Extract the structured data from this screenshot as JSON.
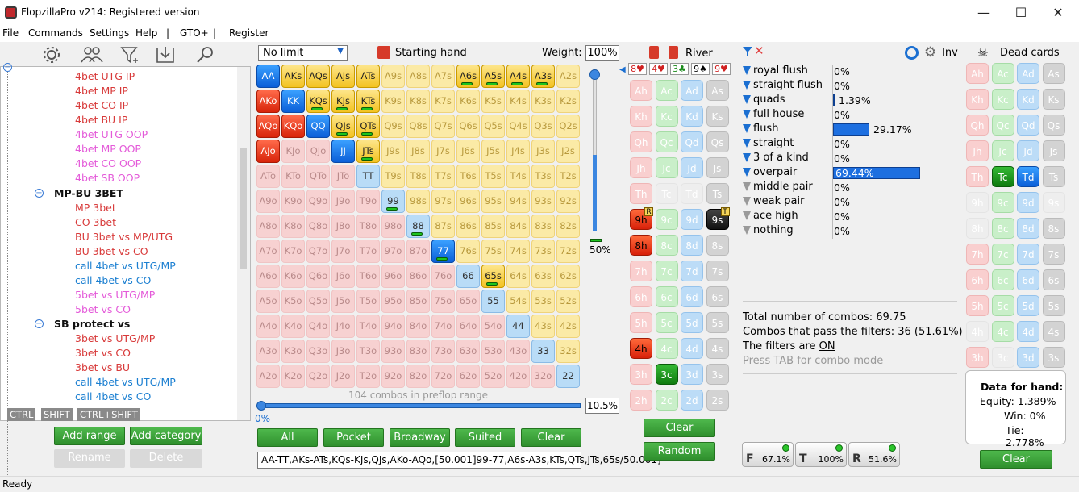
{
  "window": {
    "title": "FlopzillaPro v214: Registered version",
    "min": "—",
    "max": "☐",
    "close": "✕"
  },
  "menu": [
    "File",
    "Commands",
    "Settings",
    "Help",
    "|",
    "GTO+",
    "|",
    "Register"
  ],
  "toolbar_icons": [
    "gear-icon",
    "users-icon",
    "filter-add-icon",
    "import-icon",
    "search-icon"
  ],
  "tree": {
    "top_items": [
      {
        "label": "4bet UTG IP",
        "color": "#d83a3a"
      },
      {
        "label": "4bet MP IP",
        "color": "#d83a3a"
      },
      {
        "label": "4bet CO IP",
        "color": "#d83a3a"
      },
      {
        "label": "4bet BU IP",
        "color": "#d83a3a"
      },
      {
        "label": "4bet UTG OOP",
        "color": "#e45ad9"
      },
      {
        "label": "4bet MP OOP",
        "color": "#e45ad9"
      },
      {
        "label": "4bet CO OOP",
        "color": "#e45ad9"
      },
      {
        "label": "4bet SB OOP",
        "color": "#e45ad9"
      }
    ],
    "groups": [
      {
        "label": "MP-BU 3BET",
        "items": [
          {
            "label": "MP 3bet",
            "color": "#d83a3a"
          },
          {
            "label": "CO 3bet",
            "color": "#d83a3a"
          },
          {
            "label": "BU 3bet vs MP/UTG",
            "color": "#d83a3a"
          },
          {
            "label": "BU 3bet vs CO",
            "color": "#d83a3a"
          },
          {
            "label": "call 4bet vs UTG/MP",
            "color": "#1b7fd1"
          },
          {
            "label": "call 4bet vs CO",
            "color": "#1b7fd1"
          },
          {
            "label": "5bet vs UTG/MP",
            "color": "#e45ad9"
          },
          {
            "label": "5bet vs CO",
            "color": "#e45ad9"
          }
        ]
      },
      {
        "label": "SB protect vs",
        "items": [
          {
            "label": "3bet vs UTG/MP",
            "color": "#d83a3a"
          },
          {
            "label": "3bet vs CO",
            "color": "#d83a3a"
          },
          {
            "label": "3bet vs BU",
            "color": "#d83a3a"
          },
          {
            "label": "call 4bet vs UTG/MP",
            "color": "#1b7fd1"
          },
          {
            "label": "call 4bet vs CO",
            "color": "#1b7fd1"
          }
        ]
      }
    ],
    "keys": [
      "CTRL",
      "SHIFT",
      "CTRL+SHIFT"
    ]
  },
  "left_buttons": {
    "add_range": "Add range",
    "add_category": "Add category",
    "rename": "Rename",
    "delete": "Delete"
  },
  "range_header": {
    "limit": "No limit",
    "starting_hand": "Starting hand",
    "weight_label": "Weight:",
    "weight_value": "100%"
  },
  "matrix_selected": {
    "AA": "blue",
    "KK": "blue",
    "QQ": "blue",
    "JJ": "blue",
    "TT": "lblue",
    "99": "lblue",
    "88": "lblue",
    "77": "blue",
    "66": "lblue",
    "55": "lblue",
    "44": "lblue",
    "33": "lblue",
    "22": "lblue",
    "AKs": "gold",
    "AQs": "gold",
    "AJs": "gold",
    "ATs": "gold",
    "A6s": "goldb",
    "A5s": "goldb",
    "A4s": "goldb",
    "A3s": "goldb",
    "KQs": "goldb",
    "KJs": "goldb",
    "KTs": "goldb",
    "QJs": "goldb",
    "QTs": "goldb",
    "JTs": "goldb",
    "65s": "goldb",
    "AKo": "red",
    "AQo": "red",
    "KQo": "red",
    "AJo": "red",
    "A9s": "pale",
    "A8s": "pale",
    "A7s": "pale",
    "A2s": "pale",
    "K9s": "pale",
    "K8s": "pale",
    "K7s": "pale",
    "K6s": "pale",
    "K5s": "pale",
    "K4s": "pale",
    "K3s": "pale",
    "K2s": "pale",
    "Q9s": "pale",
    "Q8s": "pale",
    "Q7s": "pale",
    "Q6s": "pale",
    "Q5s": "pale",
    "Q4s": "pale",
    "Q3s": "pale",
    "Q2s": "pale",
    "J9s": "pale",
    "J8s": "pale",
    "J7s": "pale",
    "J6s": "pale",
    "J5s": "pale",
    "J4s": "pale",
    "J3s": "pale",
    "J2s": "pale",
    "T9s": "pale",
    "T8s": "pale",
    "T7s": "pale",
    "T6s": "pale",
    "T5s": "pale",
    "T4s": "pale",
    "T3s": "pale",
    "T2s": "pale",
    "98s": "pale",
    "97s": "pale",
    "96s": "pale",
    "95s": "pale",
    "94s": "pale",
    "93s": "pale",
    "92s": "pale",
    "87s": "pale",
    "86s": "pale",
    "85s": "pale",
    "84s": "pale",
    "83s": "pale",
    "82s": "pale",
    "76s": "pale",
    "75s": "pale",
    "74s": "pale",
    "73s": "pale",
    "72s": "pale",
    "64s": "pale",
    "63s": "pale",
    "62s": "pale",
    "54s": "pale",
    "53s": "pale",
    "52s": "pale",
    "43s": "pale",
    "42s": "pale",
    "32s": "pale"
  },
  "preflop": {
    "combos_text": "104 combos in preflop range",
    "left_pct": "0%",
    "right_pct": "10.5%",
    "slider_pct": "50%",
    "slider_level": 0.5
  },
  "range_buttons": [
    "All",
    "Pocket",
    "Broadway",
    "Suited",
    "Clear"
  ],
  "range_text": "AA-TT,AKs-ATs,KQs-KJs,QJs,AKo-AQo,[50.001]99-77,A6s-A3s,KTs,QTs,JTs,65s/50.001]",
  "board": {
    "title": "River",
    "cards": [
      "8♥",
      "4♥",
      "3♣",
      "9♠",
      "9♥"
    ],
    "clear": "Clear",
    "random": "Random"
  },
  "board_grid": [
    [
      {
        "t": "Ah",
        "s": "r"
      },
      {
        "t": "Ac",
        "s": "g"
      },
      {
        "t": "Ad",
        "s": "b"
      },
      {
        "t": "As",
        "s": "k"
      }
    ],
    [
      {
        "t": "Kh",
        "s": "r"
      },
      {
        "t": "Kc",
        "s": "g"
      },
      {
        "t": "Kd",
        "s": "b"
      },
      {
        "t": "Ks",
        "s": "k"
      }
    ],
    [
      {
        "t": "Qh",
        "s": "r"
      },
      {
        "t": "Qc",
        "s": "g"
      },
      {
        "t": "Qd",
        "s": "b"
      },
      {
        "t": "Qs",
        "s": "k"
      }
    ],
    [
      {
        "t": "Jh",
        "s": "r"
      },
      {
        "t": "Jc",
        "s": "g"
      },
      {
        "t": "Jd",
        "s": "b"
      },
      {
        "t": "Js",
        "s": "k"
      }
    ],
    [
      {
        "t": "Th",
        "s": "r"
      },
      {
        "t": "Tc",
        "s": "x"
      },
      {
        "t": "Td",
        "s": "x"
      },
      {
        "t": "Ts",
        "s": "k"
      }
    ],
    [
      {
        "t": "9h",
        "s": "R",
        "b": "R"
      },
      {
        "t": "9c",
        "s": "g"
      },
      {
        "t": "9d",
        "s": "b"
      },
      {
        "t": "9s",
        "s": "K",
        "b": "T"
      }
    ],
    [
      {
        "t": "8h",
        "s": "R"
      },
      {
        "t": "8c",
        "s": "g"
      },
      {
        "t": "8d",
        "s": "b"
      },
      {
        "t": "8s",
        "s": "k"
      }
    ],
    [
      {
        "t": "7h",
        "s": "r"
      },
      {
        "t": "7c",
        "s": "g"
      },
      {
        "t": "7d",
        "s": "b"
      },
      {
        "t": "7s",
        "s": "k"
      }
    ],
    [
      {
        "t": "6h",
        "s": "r"
      },
      {
        "t": "6c",
        "s": "g"
      },
      {
        "t": "6d",
        "s": "b"
      },
      {
        "t": "6s",
        "s": "k"
      }
    ],
    [
      {
        "t": "5h",
        "s": "r"
      },
      {
        "t": "5c",
        "s": "g"
      },
      {
        "t": "5d",
        "s": "b"
      },
      {
        "t": "5s",
        "s": "k"
      }
    ],
    [
      {
        "t": "4h",
        "s": "R"
      },
      {
        "t": "4c",
        "s": "g"
      },
      {
        "t": "4d",
        "s": "b"
      },
      {
        "t": "4s",
        "s": "k"
      }
    ],
    [
      {
        "t": "3h",
        "s": "r"
      },
      {
        "t": "3c",
        "s": "G"
      },
      {
        "t": "3d",
        "s": "b"
      },
      {
        "t": "3s",
        "s": "k"
      }
    ],
    [
      {
        "t": "2h",
        "s": "r"
      },
      {
        "t": "2c",
        "s": "g"
      },
      {
        "t": "2d",
        "s": "b"
      },
      {
        "t": "2s",
        "s": "k"
      }
    ]
  ],
  "filters": {
    "inv_label": "Inv",
    "rows": [
      {
        "label": "royal flush",
        "value": "0%",
        "pct": 0,
        "active": true
      },
      {
        "label": "straight flush",
        "value": "0%",
        "pct": 0,
        "active": true
      },
      {
        "label": "quads",
        "value": "1.39%",
        "pct": 1.39,
        "active": true
      },
      {
        "label": "full house",
        "value": "0%",
        "pct": 0,
        "active": true
      },
      {
        "label": "flush",
        "value": "29.17%",
        "pct": 29.17,
        "active": true
      },
      {
        "label": "straight",
        "value": "0%",
        "pct": 0,
        "active": true
      },
      {
        "label": "3 of a kind",
        "value": "0%",
        "pct": 0,
        "active": true
      },
      {
        "label": "overpair",
        "value": "69.44%",
        "pct": 69.44,
        "active": true
      },
      {
        "label": "middle pair",
        "value": "0%",
        "pct": 0,
        "active": false
      },
      {
        "label": "weak pair",
        "value": "0%",
        "pct": 0,
        "active": false
      },
      {
        "label": "ace high",
        "value": "0%",
        "pct": 0,
        "active": false
      },
      {
        "label": "nothing",
        "value": "0%",
        "pct": 0,
        "active": false
      }
    ],
    "total": "Total number of combos: 69.75",
    "pass": "Combos that pass the filters: 36 (51.61%)",
    "on_prefix": "The filters are ",
    "on_value": "ON",
    "tab_hint": "Press TAB for combo mode",
    "boxes": [
      {
        "letter": "F",
        "pct": "67.1%"
      },
      {
        "letter": "T",
        "pct": "100%"
      },
      {
        "letter": "R",
        "pct": "51.6%"
      }
    ]
  },
  "dead": {
    "title": "Dead cards",
    "clear": "Clear",
    "data_title": "Data for hand:",
    "equity": "Equity: 1.389%",
    "win": "Win: 0%",
    "tie": "Tie: 2.778%"
  },
  "dead_grid": [
    [
      {
        "t": "Ah",
        "s": "r"
      },
      {
        "t": "Ac",
        "s": "g"
      },
      {
        "t": "Ad",
        "s": "b"
      },
      {
        "t": "As",
        "s": "k"
      }
    ],
    [
      {
        "t": "Kh",
        "s": "r"
      },
      {
        "t": "Kc",
        "s": "g"
      },
      {
        "t": "Kd",
        "s": "b"
      },
      {
        "t": "Ks",
        "s": "k"
      }
    ],
    [
      {
        "t": "Qh",
        "s": "r"
      },
      {
        "t": "Qc",
        "s": "g"
      },
      {
        "t": "Qd",
        "s": "b"
      },
      {
        "t": "Qs",
        "s": "k"
      }
    ],
    [
      {
        "t": "Jh",
        "s": "r"
      },
      {
        "t": "Jc",
        "s": "g"
      },
      {
        "t": "Jd",
        "s": "b"
      },
      {
        "t": "Js",
        "s": "k"
      }
    ],
    [
      {
        "t": "Th",
        "s": "r"
      },
      {
        "t": "Tc",
        "s": "G"
      },
      {
        "t": "Td",
        "s": "B"
      },
      {
        "t": "Ts",
        "s": "k"
      }
    ],
    [
      {
        "t": "9h",
        "s": "x"
      },
      {
        "t": "9c",
        "s": "g"
      },
      {
        "t": "9d",
        "s": "b"
      },
      {
        "t": "9s",
        "s": "x"
      }
    ],
    [
      {
        "t": "8h",
        "s": "x"
      },
      {
        "t": "8c",
        "s": "g"
      },
      {
        "t": "8d",
        "s": "b"
      },
      {
        "t": "8s",
        "s": "k"
      }
    ],
    [
      {
        "t": "7h",
        "s": "r"
      },
      {
        "t": "7c",
        "s": "g"
      },
      {
        "t": "7d",
        "s": "b"
      },
      {
        "t": "7s",
        "s": "k"
      }
    ],
    [
      {
        "t": "6h",
        "s": "r"
      },
      {
        "t": "6c",
        "s": "g"
      },
      {
        "t": "6d",
        "s": "b"
      },
      {
        "t": "6s",
        "s": "k"
      }
    ],
    [
      {
        "t": "5h",
        "s": "r"
      },
      {
        "t": "5c",
        "s": "g"
      },
      {
        "t": "5d",
        "s": "b"
      },
      {
        "t": "5s",
        "s": "k"
      }
    ],
    [
      {
        "t": "4h",
        "s": "x"
      },
      {
        "t": "4c",
        "s": "g"
      },
      {
        "t": "4d",
        "s": "b"
      },
      {
        "t": "4s",
        "s": "k"
      }
    ],
    [
      {
        "t": "3h",
        "s": "r"
      },
      {
        "t": "3c",
        "s": "x"
      },
      {
        "t": "3d",
        "s": "b"
      },
      {
        "t": "3s",
        "s": "k"
      }
    ],
    [
      {
        "t": "2h",
        "s": "r"
      },
      {
        "t": "2c",
        "s": "g"
      },
      {
        "t": "2d",
        "s": "b"
      },
      {
        "t": "2s",
        "s": "k"
      }
    ]
  ],
  "status": "Ready"
}
